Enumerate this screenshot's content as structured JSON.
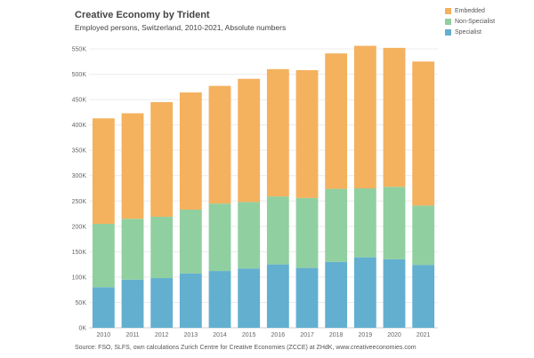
{
  "chart_data": {
    "type": "bar",
    "stacked": true,
    "title": "Creative Economy by Trident",
    "subtitle": "Employed persons, Switzerland, 2010-2021, Absolute numbers",
    "categories": [
      "2010",
      "2011",
      "2012",
      "2013",
      "2014",
      "2015",
      "2016",
      "2017",
      "2018",
      "2019",
      "2020",
      "2021"
    ],
    "series": [
      {
        "name": "Specialist",
        "color": "#63afd0",
        "values": [
          80000,
          95000,
          98000,
          107000,
          112000,
          117000,
          125000,
          118000,
          130000,
          139000,
          135000,
          124000
        ]
      },
      {
        "name": "Non-Specialist",
        "color": "#90cfa0",
        "values": [
          125000,
          120000,
          121000,
          126000,
          133000,
          131000,
          134000,
          138000,
          144000,
          136000,
          143000,
          117000
        ]
      },
      {
        "name": "Embedded",
        "color": "#f4b15e",
        "values": [
          208000,
          208000,
          226000,
          231000,
          232000,
          243000,
          251000,
          252000,
          267000,
          281000,
          274000,
          284000
        ]
      }
    ],
    "legend": [
      "Embedded",
      "Non-Specialist",
      "Specialist"
    ],
    "legend_position": "top-right",
    "y_ticks": [
      "0K",
      "50K",
      "100K",
      "150K",
      "200K",
      "250K",
      "300K",
      "350K",
      "400K",
      "450K",
      "500K",
      "550K"
    ],
    "ylim": [
      0,
      550000
    ],
    "grid": true
  },
  "source": "Source: FSO, SLFS, own calculations Zurich Centre for Creative Economies (ZCCE) at ZHdK, www.creativeeconomies.com"
}
